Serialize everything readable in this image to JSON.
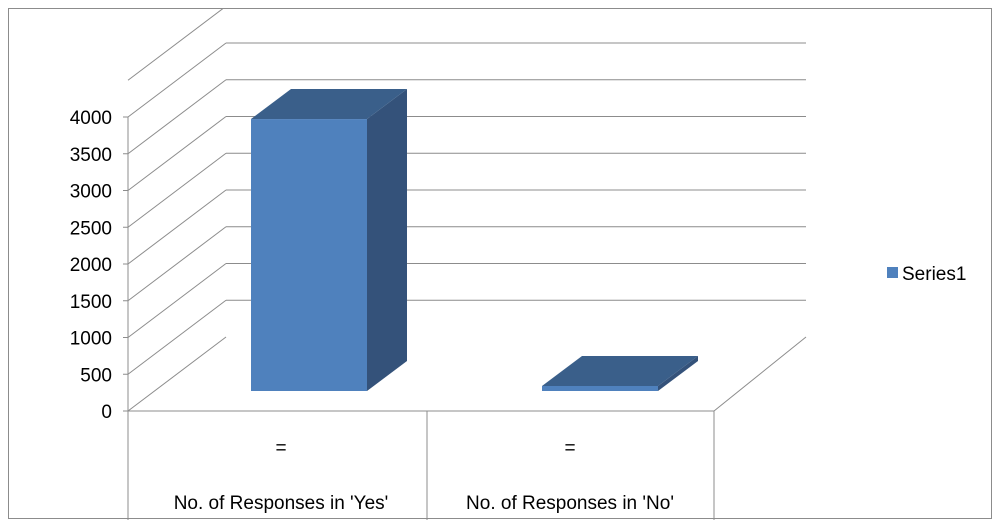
{
  "chart_data": {
    "type": "bar",
    "style": "3d-column",
    "categories": [
      {
        "top": "=",
        "bottom": "No. of Responses in 'Yes'"
      },
      {
        "top": "=",
        "bottom": "No. of Responses in 'No'"
      }
    ],
    "series": [
      {
        "name": "Series1",
        "values": [
          3700,
          50
        ],
        "color": "#4f81bd"
      }
    ],
    "ylim": [
      0,
      4000
    ],
    "yticks": [
      0,
      500,
      1000,
      1500,
      2000,
      2500,
      3000,
      3500,
      4000
    ],
    "grid": true,
    "legend_position": "right",
    "colors": {
      "face": "#4f81bd",
      "top": "#3a5f8a",
      "side": "#34527a",
      "grid": "#8c8c8c"
    }
  }
}
